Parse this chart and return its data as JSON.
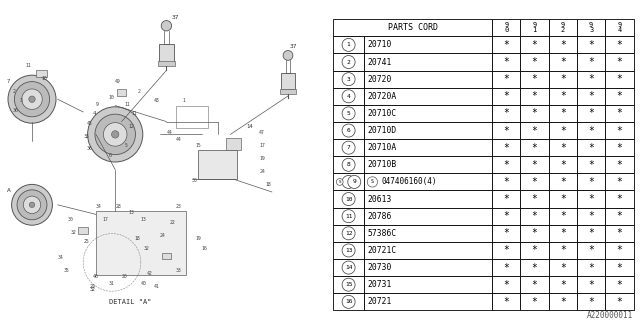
{
  "diagram_label": "A220000011",
  "rows": [
    [
      1,
      "20710"
    ],
    [
      2,
      "20741"
    ],
    [
      3,
      "20720"
    ],
    [
      4,
      "20720A"
    ],
    [
      5,
      "20710C"
    ],
    [
      6,
      "20710D"
    ],
    [
      7,
      "20710A"
    ],
    [
      8,
      "20710B"
    ],
    [
      9,
      "047406160(4)"
    ],
    [
      10,
      "20613"
    ],
    [
      11,
      "20786"
    ],
    [
      12,
      "57386C"
    ],
    [
      13,
      "20721C"
    ],
    [
      14,
      "20730"
    ],
    [
      15,
      "20731"
    ],
    [
      16,
      "20721"
    ]
  ],
  "year_headers": [
    "9\n0",
    "9\n1",
    "9\n2",
    "9\n3",
    "9\n4"
  ],
  "bg_color": "#ffffff",
  "line_color": "#000000",
  "text_color": "#000000",
  "gray_line": "#888888",
  "font_family": "monospace"
}
